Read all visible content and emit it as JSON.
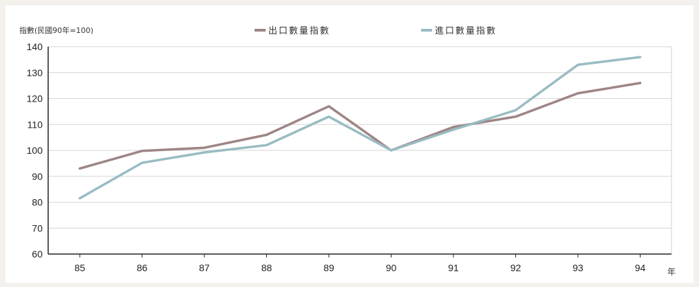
{
  "chart_data": {
    "type": "line",
    "ylabel": "指數(民國90年=100)",
    "xunit": "年",
    "categories": [
      "85",
      "86",
      "87",
      "88",
      "89",
      "90",
      "91",
      "92",
      "93",
      "94"
    ],
    "ylim": [
      60,
      140
    ],
    "yticks": [
      "140",
      "130",
      "120",
      "110",
      "100",
      "90",
      "80",
      "70",
      "60"
    ],
    "grid": true,
    "legend_position": "top",
    "series": [
      {
        "name": "出口數量指數",
        "color": "#9e8585",
        "values": [
          93,
          99.8,
          101,
          106,
          117,
          100,
          109,
          113,
          122,
          126
        ]
      },
      {
        "name": "進口數量指數",
        "color": "#99bcc2",
        "values": [
          81.5,
          95.2,
          99.2,
          102,
          113,
          100,
          108,
          115.5,
          133,
          136
        ]
      }
    ]
  }
}
